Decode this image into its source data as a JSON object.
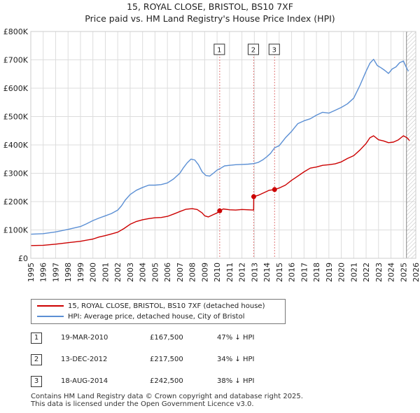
{
  "chart_data": {
    "type": "line",
    "title": "15, ROYAL CLOSE, BRISTOL, BS10 7XF",
    "subtitle": "Price paid vs. HM Land Registry's House Price Index (HPI)",
    "xlim": [
      1995,
      2026
    ],
    "ylim": [
      0,
      800000
    ],
    "x_ticks": [
      "1995",
      "1996",
      "1997",
      "1998",
      "1999",
      "2000",
      "2001",
      "2002",
      "2003",
      "2004",
      "2005",
      "2006",
      "2007",
      "2008",
      "2009",
      "2010",
      "2011",
      "2012",
      "2013",
      "2014",
      "2015",
      "2016",
      "2017",
      "2018",
      "2019",
      "2020",
      "2021",
      "2022",
      "2023",
      "2024",
      "2025",
      "2026"
    ],
    "y_ticks": [
      {
        "value": 0,
        "label": "£0"
      },
      {
        "value": 100000,
        "label": "£100K"
      },
      {
        "value": 200000,
        "label": "£200K"
      },
      {
        "value": 300000,
        "label": "£300K"
      },
      {
        "value": 400000,
        "label": "£400K"
      },
      {
        "value": 500000,
        "label": "£500K"
      },
      {
        "value": 600000,
        "label": "£600K"
      },
      {
        "value": 700000,
        "label": "£700K"
      },
      {
        "value": 800000,
        "label": "£800K"
      }
    ],
    "grid": true,
    "series": [
      {
        "name": "15, ROYAL CLOSE, BRISTOL, BS10 7XF (detached house)",
        "color": "#cc0000",
        "points": [
          [
            1995.0,
            45000
          ],
          [
            1996.0,
            46000
          ],
          [
            1997.0,
            50000
          ],
          [
            1998.0,
            55000
          ],
          [
            1999.0,
            60000
          ],
          [
            2000.0,
            68000
          ],
          [
            2000.5,
            75000
          ],
          [
            2001.0,
            80000
          ],
          [
            2001.5,
            86000
          ],
          [
            2002.0,
            92000
          ],
          [
            2002.5,
            105000
          ],
          [
            2003.0,
            120000
          ],
          [
            2003.5,
            130000
          ],
          [
            2004.0,
            136000
          ],
          [
            2004.5,
            140000
          ],
          [
            2005.0,
            143000
          ],
          [
            2005.5,
            144000
          ],
          [
            2006.0,
            148000
          ],
          [
            2006.5,
            156000
          ],
          [
            2007.0,
            165000
          ],
          [
            2007.5,
            173000
          ],
          [
            2008.0,
            175000
          ],
          [
            2008.4,
            172000
          ],
          [
            2008.8,
            160000
          ],
          [
            2009.0,
            150000
          ],
          [
            2009.3,
            146000
          ],
          [
            2009.6,
            152000
          ],
          [
            2010.0,
            160000
          ],
          [
            2010.21,
            167500
          ],
          [
            2010.5,
            174000
          ],
          [
            2011.0,
            171000
          ],
          [
            2011.5,
            170000
          ],
          [
            2012.0,
            172000
          ],
          [
            2012.94,
            170000
          ],
          [
            2012.95,
            217500
          ],
          [
            2013.3,
            222000
          ],
          [
            2013.7,
            230000
          ],
          [
            2014.2,
            240000
          ],
          [
            2014.63,
            242500
          ],
          [
            2015.0,
            248000
          ],
          [
            2015.5,
            258000
          ],
          [
            2016.0,
            275000
          ],
          [
            2016.5,
            290000
          ],
          [
            2017.0,
            305000
          ],
          [
            2017.5,
            318000
          ],
          [
            2018.0,
            322000
          ],
          [
            2018.5,
            328000
          ],
          [
            2019.0,
            330000
          ],
          [
            2019.5,
            333000
          ],
          [
            2020.0,
            340000
          ],
          [
            2020.5,
            352000
          ],
          [
            2021.0,
            362000
          ],
          [
            2021.5,
            382000
          ],
          [
            2022.0,
            405000
          ],
          [
            2022.3,
            425000
          ],
          [
            2022.6,
            432000
          ],
          [
            2023.0,
            418000
          ],
          [
            2023.4,
            414000
          ],
          [
            2023.8,
            408000
          ],
          [
            2024.2,
            410000
          ],
          [
            2024.6,
            418000
          ],
          [
            2025.0,
            432000
          ],
          [
            2025.3,
            425000
          ],
          [
            2025.5,
            415000
          ]
        ]
      },
      {
        "name": "HPI: Average price, detached house, City of Bristol",
        "color": "#5b8fd4",
        "points": [
          [
            1995.0,
            85000
          ],
          [
            1996.0,
            87000
          ],
          [
            1997.0,
            93000
          ],
          [
            1998.0,
            102000
          ],
          [
            1999.0,
            112000
          ],
          [
            1999.5,
            122000
          ],
          [
            2000.0,
            133000
          ],
          [
            2000.5,
            142000
          ],
          [
            2001.0,
            150000
          ],
          [
            2001.5,
            158000
          ],
          [
            2002.0,
            170000
          ],
          [
            2002.3,
            185000
          ],
          [
            2002.6,
            205000
          ],
          [
            2003.0,
            225000
          ],
          [
            2003.5,
            240000
          ],
          [
            2004.0,
            250000
          ],
          [
            2004.5,
            258000
          ],
          [
            2005.0,
            258000
          ],
          [
            2005.5,
            260000
          ],
          [
            2006.0,
            266000
          ],
          [
            2006.5,
            280000
          ],
          [
            2007.0,
            300000
          ],
          [
            2007.3,
            320000
          ],
          [
            2007.6,
            337000
          ],
          [
            2007.9,
            350000
          ],
          [
            2008.2,
            347000
          ],
          [
            2008.5,
            330000
          ],
          [
            2008.8,
            305000
          ],
          [
            2009.1,
            292000
          ],
          [
            2009.4,
            290000
          ],
          [
            2009.7,
            300000
          ],
          [
            2010.0,
            311000
          ],
          [
            2010.3,
            318000
          ],
          [
            2010.6,
            326000
          ],
          [
            2011.0,
            328000
          ],
          [
            2011.5,
            330000
          ],
          [
            2012.0,
            331000
          ],
          [
            2012.5,
            332000
          ],
          [
            2012.95,
            334000
          ],
          [
            2013.3,
            338000
          ],
          [
            2013.7,
            348000
          ],
          [
            2014.0,
            358000
          ],
          [
            2014.3,
            370000
          ],
          [
            2014.63,
            390000
          ],
          [
            2015.0,
            397000
          ],
          [
            2015.5,
            425000
          ],
          [
            2016.0,
            448000
          ],
          [
            2016.5,
            475000
          ],
          [
            2017.0,
            485000
          ],
          [
            2017.5,
            492000
          ],
          [
            2018.0,
            505000
          ],
          [
            2018.5,
            515000
          ],
          [
            2019.0,
            512000
          ],
          [
            2019.5,
            522000
          ],
          [
            2020.0,
            532000
          ],
          [
            2020.5,
            545000
          ],
          [
            2021.0,
            565000
          ],
          [
            2021.5,
            610000
          ],
          [
            2022.0,
            660000
          ],
          [
            2022.3,
            688000
          ],
          [
            2022.6,
            702000
          ],
          [
            2022.9,
            680000
          ],
          [
            2023.2,
            672000
          ],
          [
            2023.5,
            663000
          ],
          [
            2023.8,
            652000
          ],
          [
            2024.1,
            668000
          ],
          [
            2024.4,
            675000
          ],
          [
            2024.7,
            690000
          ],
          [
            2025.0,
            696000
          ],
          [
            2025.25,
            672000
          ],
          [
            2025.4,
            660000
          ]
        ]
      }
    ],
    "sales": [
      {
        "num": "1",
        "x": 2010.21,
        "price": 167500
      },
      {
        "num": "2",
        "x": 2012.95,
        "price": 217500
      },
      {
        "num": "3",
        "x": 2014.63,
        "price": 242500
      }
    ],
    "shaded_region": {
      "from": 2025.25,
      "to": 2026,
      "pattern": "hatch"
    }
  },
  "legend": {
    "property_label": "15, ROYAL CLOSE, BRISTOL, BS10 7XF (detached house)",
    "hpi_label": "HPI: Average price, detached house, City of Bristol"
  },
  "sales_table": [
    {
      "num": "1",
      "date": "19-MAR-2010",
      "price": "£167,500",
      "hpi": "47% ↓ HPI"
    },
    {
      "num": "2",
      "date": "13-DEC-2012",
      "price": "£217,500",
      "hpi": "34% ↓ HPI"
    },
    {
      "num": "3",
      "date": "18-AUG-2014",
      "price": "£242,500",
      "hpi": "38% ↓ HPI"
    }
  ],
  "footer": {
    "line1": "Contains HM Land Registry data © Crown copyright and database right 2025.",
    "line2": "This data is licensed under the Open Government Licence v3.0."
  },
  "colors": {
    "property": "#cc0000",
    "hpi": "#5b8fd4",
    "grid": "#dddddd",
    "marker_line": "#e07a7a"
  }
}
